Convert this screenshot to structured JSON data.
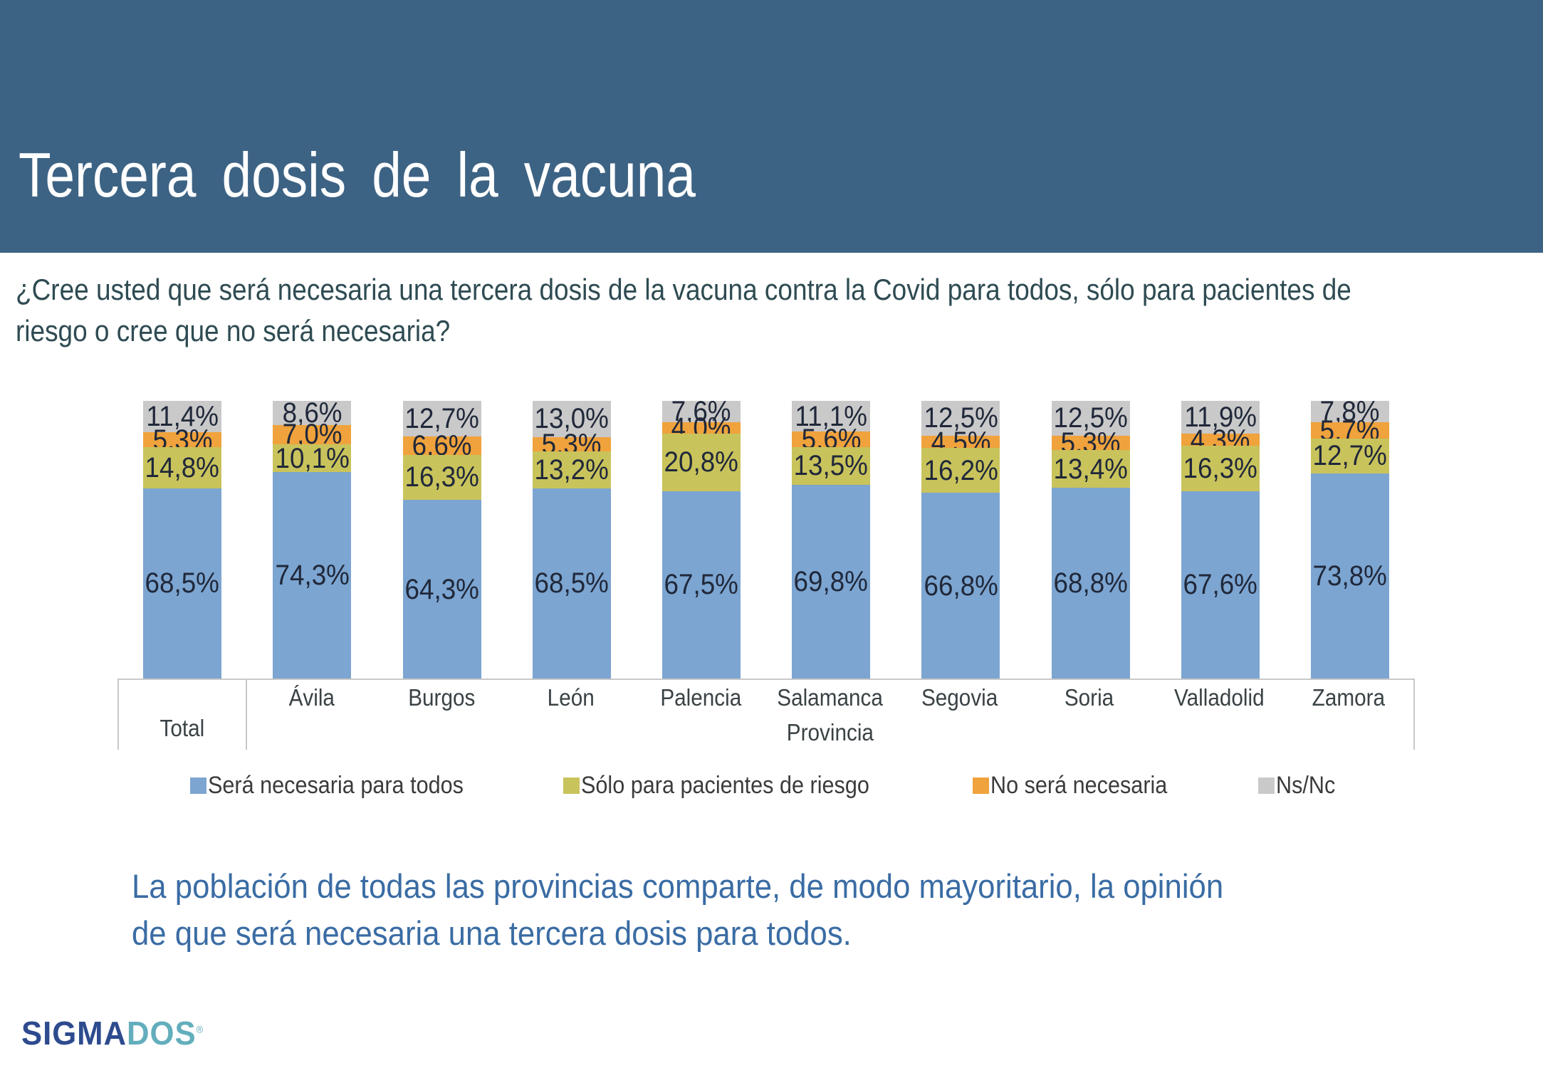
{
  "header": {
    "title": "Tercera dosis de la vacuna"
  },
  "question": {
    "lines": [
      "¿Cree usted que será necesaria una tercera dosis de la vacuna contra la Covid para todos, sólo para pacientes de",
      "riesgo o cree que no será necesaria?"
    ]
  },
  "chart_data": {
    "type": "bar",
    "stacked": true,
    "unit": "%",
    "decimal_separator": ",",
    "ylim": [
      0,
      100
    ],
    "gridlines": false,
    "legend_position": "bottom",
    "categories": [
      "Total",
      "Ávila",
      "Burgos",
      "León",
      "Palencia",
      "Salamanca",
      "Segovia",
      "Soria",
      "Valladolid",
      "Zamora"
    ],
    "axis": {
      "total_label": "Total",
      "group_label": "Provincia"
    },
    "series": [
      {
        "name": "Será necesaria para todos",
        "color": "#7CA5D1",
        "values": [
          68.5,
          74.3,
          64.3,
          68.5,
          67.5,
          69.8,
          66.8,
          68.8,
          67.6,
          73.8
        ]
      },
      {
        "name": "Sólo para pacientes de riesgo",
        "color": "#C9C35C",
        "values": [
          14.8,
          10.1,
          16.3,
          13.2,
          20.8,
          13.5,
          16.2,
          13.4,
          16.3,
          12.7
        ]
      },
      {
        "name": "No será necesaria",
        "color": "#F0A23C",
        "values": [
          5.3,
          7.0,
          6.6,
          5.3,
          4.0,
          5.6,
          4.5,
          5.3,
          4.3,
          5.7
        ]
      },
      {
        "name": "Ns/Nc",
        "color": "#C9C9C9",
        "values": [
          11.4,
          8.6,
          12.7,
          13.0,
          7.6,
          11.1,
          12.5,
          12.5,
          11.9,
          7.8
        ]
      }
    ]
  },
  "conclusion": {
    "lines": [
      "La población de todas las provincias comparte, de modo mayoritario, la opinión",
      "de que será necesaria una tercera dosis para todos."
    ]
  },
  "logo": {
    "part1": "SIGMA",
    "part2": "DOS",
    "registered_mark": "®"
  },
  "colors": {
    "header_band": "#3D6384",
    "question_text": "#2E4B52",
    "label_text": "#20283A",
    "axis_border": "#C9C9C9",
    "axis_text": "#3A4245",
    "conclusion_text": "#3A6CA4",
    "logo_sigma": "#2D4B8E",
    "logo_dos": "#63AEBC"
  }
}
